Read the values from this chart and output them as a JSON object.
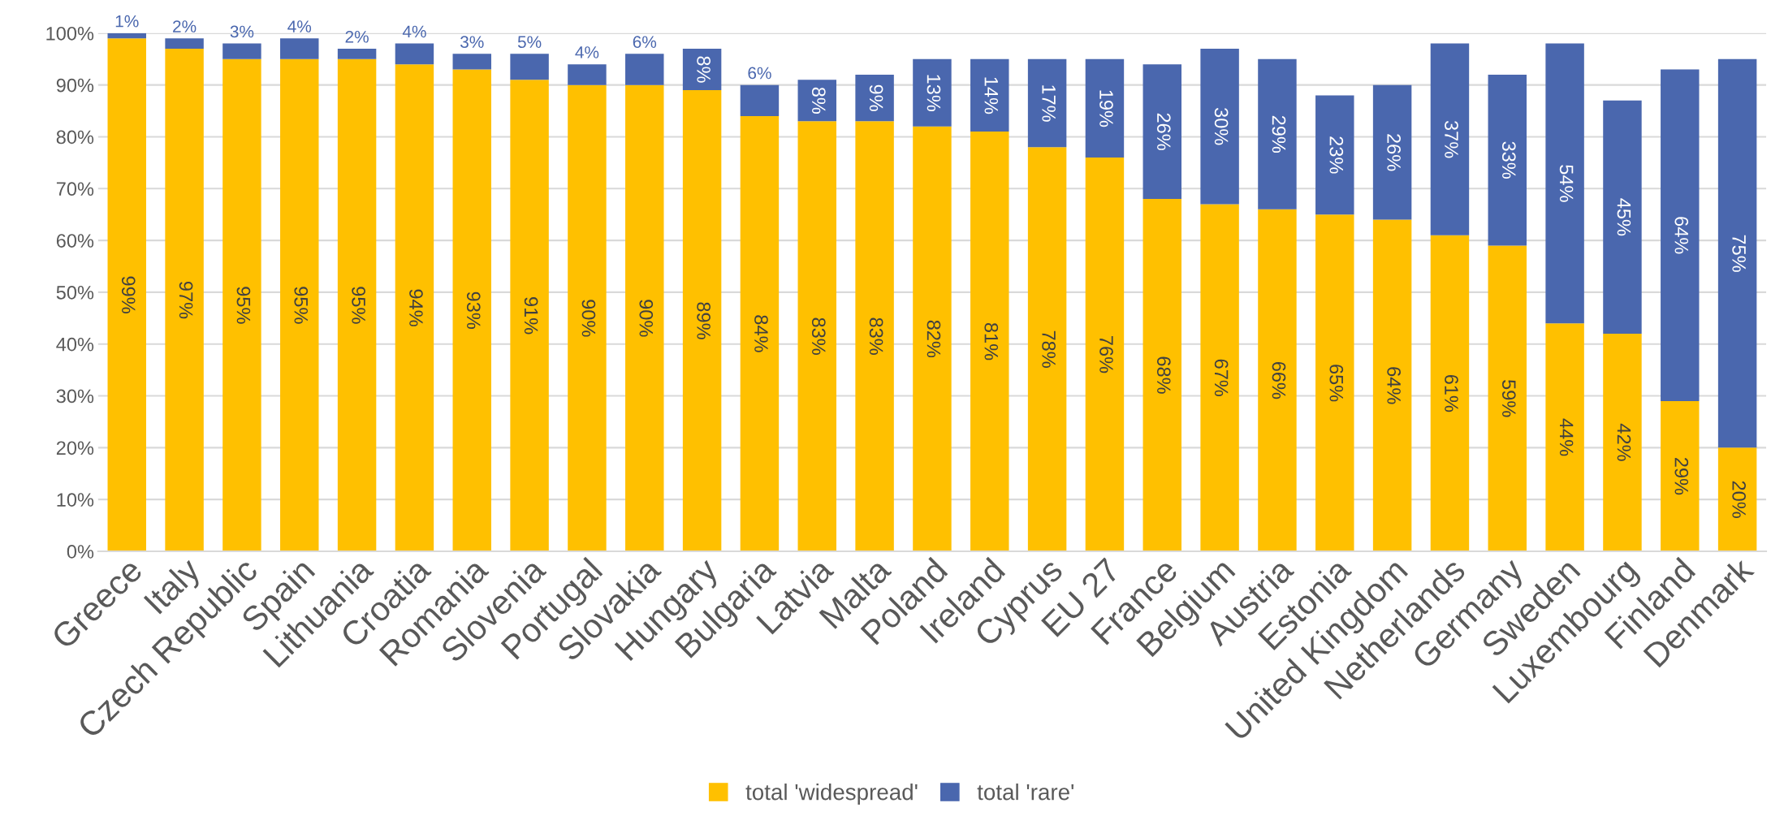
{
  "chart_data": {
    "type": "bar",
    "stacked": true,
    "categories": [
      "Greece",
      "Italy",
      "Czech Republic",
      "Spain",
      "Lithuania",
      "Croatia",
      "Romania",
      "Slovenia",
      "Portugal",
      "Slovakia",
      "Hungary",
      "Bulgaria",
      "Latvia",
      "Malta",
      "Poland",
      "Ireland",
      "Cyprus",
      "EU 27",
      "France",
      "Belgium",
      "Austria",
      "Estonia",
      "United Kingdom",
      "Netherlands",
      "Germany",
      "Sweden",
      "Luxembourg",
      "Finland",
      "Denmark"
    ],
    "series": [
      {
        "name": "total 'widespread'",
        "color": "#ffc000",
        "values": [
          99,
          97,
          95,
          95,
          95,
          94,
          93,
          91,
          90,
          90,
          89,
          84,
          83,
          83,
          82,
          81,
          78,
          76,
          68,
          67,
          66,
          65,
          64,
          61,
          59,
          44,
          42,
          29,
          20
        ],
        "value_labels": [
          "99%",
          "97%",
          "95%",
          "95%",
          "95%",
          "94%",
          "93%",
          "91%",
          "90%",
          "90%",
          "89%",
          "84%",
          "83%",
          "83%",
          "82%",
          "81%",
          "78%",
          "76%",
          "68%",
          "67%",
          "66%",
          "65%",
          "64%",
          "61%",
          "59%",
          "44%",
          "42%",
          "29%",
          "20%"
        ]
      },
      {
        "name": "total 'rare'",
        "color": "#4a67ae",
        "values": [
          1,
          2,
          3,
          4,
          2,
          4,
          3,
          5,
          4,
          6,
          8,
          6,
          8,
          9,
          13,
          14,
          17,
          19,
          26,
          30,
          29,
          23,
          26,
          37,
          33,
          54,
          45,
          64,
          75
        ],
        "value_labels": [
          "1%",
          "2%",
          "3%",
          "4%",
          "2%",
          "4%",
          "3%",
          "5%",
          "4%",
          "6%",
          "8%",
          "6%",
          "8%",
          "9%",
          "13%",
          "14%",
          "17%",
          "19%",
          "26%",
          "30%",
          "29%",
          "23%",
          "26%",
          "37%",
          "33%",
          "54%",
          "45%",
          "64%",
          "75%"
        ]
      }
    ],
    "ylim": [
      0,
      100
    ],
    "yticks": [
      {
        "value": 0,
        "label": "0%"
      },
      {
        "value": 10,
        "label": "10%"
      },
      {
        "value": 20,
        "label": "20%"
      },
      {
        "value": 30,
        "label": "30%"
      },
      {
        "value": 40,
        "label": "40%"
      },
      {
        "value": 50,
        "label": "50%"
      },
      {
        "value": 60,
        "label": "60%"
      },
      {
        "value": 70,
        "label": "70%"
      },
      {
        "value": 80,
        "label": "80%"
      },
      {
        "value": 90,
        "label": "90%"
      },
      {
        "value": 100,
        "label": "100%"
      }
    ],
    "grid": "y",
    "legend": "bottom"
  }
}
